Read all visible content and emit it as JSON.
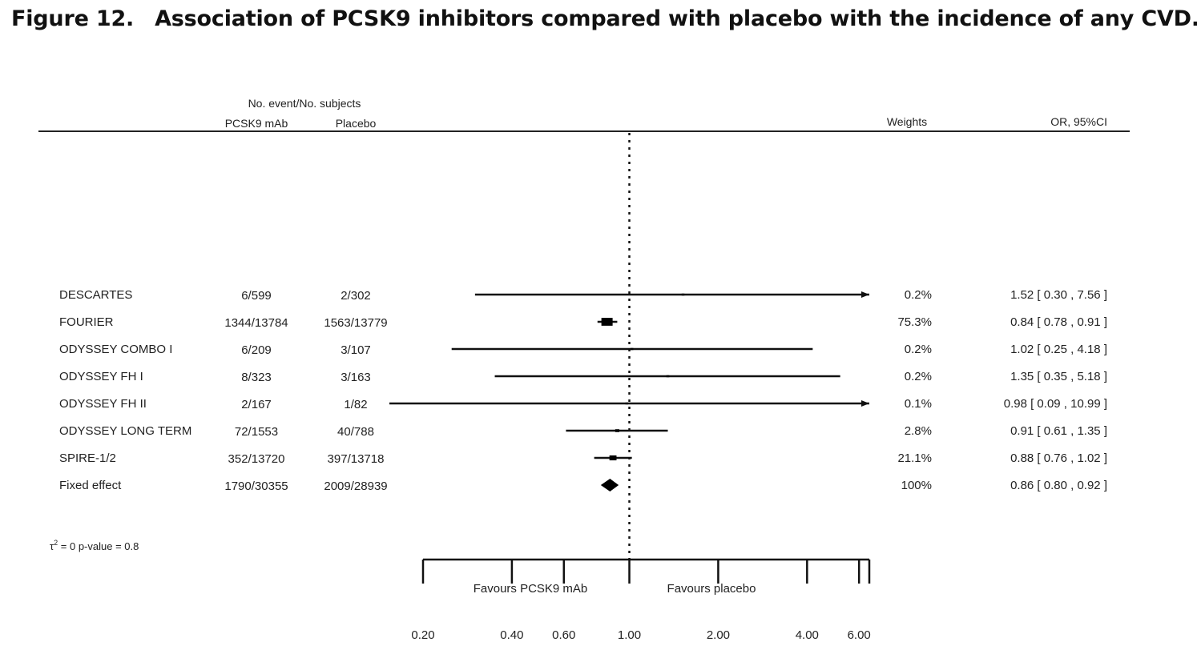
{
  "figure": {
    "number": "Figure 12.",
    "title": "Association of PCSK9 inhibitors compared with placebo with the incidence of any CVD."
  },
  "chart_data": {
    "type": "forest",
    "scale": "log",
    "xlim": [
      0.2,
      6.5
    ],
    "reference_line": 1.0,
    "column_headers": {
      "group": "No. event/No. subjects",
      "treatment": "PCSK9 mAb",
      "control": "Placebo",
      "weights": "Weights",
      "effect": "OR, 95%CI"
    },
    "studies": [
      {
        "name": "DESCARTES",
        "treatment": "6/599",
        "control": "2/302",
        "weight": "0.2%",
        "ci_text": "1.52 [ 0.30 ,  7.56 ]",
        "or": 1.52,
        "lower": 0.3,
        "upper": 7.56
      },
      {
        "name": "FOURIER",
        "treatment": "1344/13784",
        "control": "1563/13779",
        "weight": "75.3%",
        "ci_text": "0.84 [ 0.78 ,  0.91 ]",
        "or": 0.84,
        "lower": 0.78,
        "upper": 0.91
      },
      {
        "name": "ODYSSEY COMBO I",
        "treatment": "6/209",
        "control": "3/107",
        "weight": "0.2%",
        "ci_text": "1.02 [ 0.25 ,  4.18 ]",
        "or": 1.02,
        "lower": 0.25,
        "upper": 4.18
      },
      {
        "name": "ODYSSEY FH I",
        "treatment": "8/323",
        "control": "3/163",
        "weight": "0.2%",
        "ci_text": "1.35 [ 0.35 ,  5.18 ]",
        "or": 1.35,
        "lower": 0.35,
        "upper": 5.18
      },
      {
        "name": "ODYSSEY FH II",
        "treatment": "2/167",
        "control": "1/82",
        "weight": "0.1%",
        "ci_text": "0.98 [ 0.09 , 10.99 ]",
        "or": 0.98,
        "lower": 0.09,
        "upper": 10.99
      },
      {
        "name": "ODYSSEY LONG TERM",
        "treatment": "72/1553",
        "control": "40/788",
        "weight": "2.8%",
        "ci_text": "0.91 [ 0.61 ,  1.35 ]",
        "or": 0.91,
        "lower": 0.61,
        "upper": 1.35
      },
      {
        "name": "SPIRE-1/2",
        "treatment": "352/13720",
        "control": "397/13718",
        "weight": "21.1%",
        "ci_text": "0.88 [ 0.76 ,  1.02 ]",
        "or": 0.88,
        "lower": 0.76,
        "upper": 1.02
      }
    ],
    "pooled": {
      "name": "Fixed effect",
      "treatment": "1790/30355",
      "control": "2009/28939",
      "weight": "100%",
      "ci_text": "0.86 [ 0.80 , 0.92 ]",
      "or": 0.86,
      "lower": 0.8,
      "upper": 0.92
    },
    "heterogeneity": {
      "tau_label": "τ",
      "tau_sup": "2",
      "text": " = 0  p-value = 0.8"
    },
    "x_ticks": [
      {
        "value": 0.2,
        "label": "0.20"
      },
      {
        "value": 0.4,
        "label": "0.40"
      },
      {
        "value": 0.6,
        "label": "0.60"
      },
      {
        "value": 1.0,
        "label": "1.00"
      },
      {
        "value": 2.0,
        "label": "2.00"
      },
      {
        "value": 4.0,
        "label": "4.00"
      },
      {
        "value": 6.0,
        "label": "6.00"
      }
    ],
    "favours_left": "Favours PCSK9 mAb",
    "favours_right": "Favours placebo"
  }
}
